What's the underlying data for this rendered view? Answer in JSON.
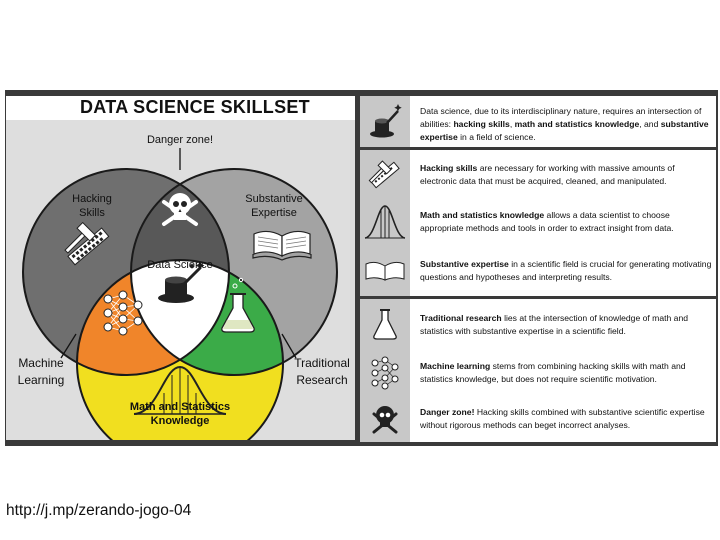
{
  "title": "DATA SCIENCE SKILLSET",
  "venn": {
    "danger_zone": "Danger zone!",
    "hacking": [
      "Hacking",
      "Skills"
    ],
    "substantive": [
      "Substantive",
      "Expertise"
    ],
    "data_science": "Data Science",
    "math": [
      "Math and Statistics",
      "Knowledge"
    ],
    "machine_learning": [
      "Machine",
      "Learning"
    ],
    "traditional_research": [
      "Traditional",
      "Research"
    ],
    "colors": {
      "hacking": "#6f6f6f",
      "substantive": "#a3a3a3",
      "danger_overlap": "#585858",
      "math": "#f1df1f",
      "machine_learning": "#f0852a",
      "traditional_research": "#3bab48",
      "data_science": "#ffffff"
    }
  },
  "descriptions": {
    "intro": {
      "pre": "Data science, due to its interdisciplinary nature, requires an intersection of abilities: ",
      "b1": "hacking skills",
      "m1": ", ",
      "b2": "math and statistics knowledge",
      "m2": ", and ",
      "b3": "substantive expertise",
      "post": " in a field of science."
    },
    "hacking": {
      "b": "Hacking skills",
      "rest": " are necessary for working with massive amounts of electronic data that must be acquired, cleaned, and manipulated."
    },
    "math": {
      "b": "Math and statistics knowledge",
      "rest": " allows a data scientist to choose appropriate methods and tools in order to extract insight from data."
    },
    "substantive": {
      "b": "Substantive expertise",
      "rest": " in a scientific field is crucial for generating motivating questions and hypotheses and interpreting results."
    },
    "traditional": {
      "b": "Traditional research",
      "rest": " lies at the intersection of knowledge of math and statistics with substantive expertise in a scientific field."
    },
    "ml": {
      "b": "Machine learning",
      "rest": " stems from combining hacking skills with math and statistics knowledge, but does not require scientific motivation."
    },
    "danger": {
      "b": "Danger zone!",
      "rest": " Hacking skills combined with substantive scientific expertise without rigorous methods can beget incorrect analyses."
    }
  },
  "icons": [
    "magic-hat-icon",
    "hammer-keyboard-icon",
    "bell-curve-icon",
    "open-book-icon",
    "flask-icon",
    "neural-network-icon",
    "skull-crossbones-icon"
  ],
  "link": "http://j.mp/zerando-jogo-04"
}
